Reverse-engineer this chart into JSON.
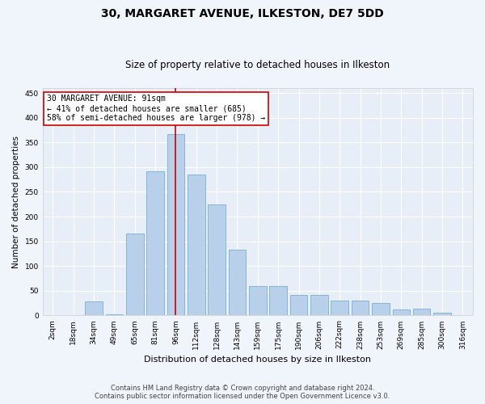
{
  "title1": "30, MARGARET AVENUE, ILKESTON, DE7 5DD",
  "title2": "Size of property relative to detached houses in Ilkeston",
  "xlabel": "Distribution of detached houses by size in Ilkeston",
  "ylabel": "Number of detached properties",
  "categories": [
    "2sqm",
    "18sqm",
    "34sqm",
    "49sqm",
    "65sqm",
    "81sqm",
    "96sqm",
    "112sqm",
    "128sqm",
    "143sqm",
    "159sqm",
    "175sqm",
    "190sqm",
    "206sqm",
    "222sqm",
    "238sqm",
    "253sqm",
    "269sqm",
    "285sqm",
    "300sqm",
    "316sqm"
  ],
  "values": [
    0,
    1,
    29,
    2,
    165,
    292,
    367,
    285,
    225,
    133,
    60,
    60,
    42,
    42,
    30,
    30,
    25,
    12,
    13,
    5,
    1
  ],
  "bar_color": "#b8d0ea",
  "bar_edge_color": "#7aadd4",
  "vline_x_index": 6,
  "vline_color": "#cc0000",
  "annotation_text": "30 MARGARET AVENUE: 91sqm\n← 41% of detached houses are smaller (685)\n58% of semi-detached houses are larger (978) →",
  "annotation_box_color": "#ffffff",
  "annotation_box_edge": "#cc0000",
  "bg_color": "#e8eef8",
  "grid_color": "#ffffff",
  "fig_bg_color": "#f0f4fb",
  "footer": "Contains HM Land Registry data © Crown copyright and database right 2024.\nContains public sector information licensed under the Open Government Licence v3.0.",
  "ylim": [
    0,
    460
  ],
  "yticks": [
    0,
    50,
    100,
    150,
    200,
    250,
    300,
    350,
    400,
    450
  ],
  "title1_fontsize": 10,
  "title2_fontsize": 8.5,
  "xlabel_fontsize": 8,
  "ylabel_fontsize": 7.5,
  "tick_fontsize": 6.5,
  "annotation_fontsize": 7,
  "footer_fontsize": 6
}
